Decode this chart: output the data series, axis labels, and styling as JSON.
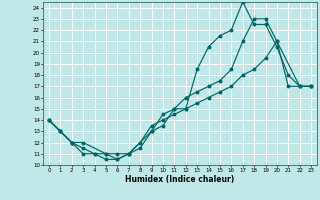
{
  "title": "",
  "xlabel": "Humidex (Indice chaleur)",
  "bg_color": "#c0e8e8",
  "grid_color": "#ffffff",
  "line_color": "#006666",
  "xlim": [
    -0.5,
    23.5
  ],
  "ylim": [
    10,
    24.5
  ],
  "xticks": [
    0,
    1,
    2,
    3,
    4,
    5,
    6,
    7,
    8,
    9,
    10,
    11,
    12,
    13,
    14,
    15,
    16,
    17,
    18,
    19,
    20,
    21,
    22,
    23
  ],
  "yticks": [
    10,
    11,
    12,
    13,
    14,
    15,
    16,
    17,
    18,
    19,
    20,
    21,
    22,
    23,
    24
  ],
  "line1_x": [
    0,
    1,
    2,
    3,
    4,
    5,
    6,
    7,
    8,
    9,
    10,
    11,
    12,
    13,
    14,
    15,
    16,
    17,
    18,
    19,
    20,
    21,
    22,
    23
  ],
  "line1_y": [
    14,
    13,
    12,
    11,
    11,
    10.5,
    10.5,
    11,
    11.5,
    13,
    13.5,
    15,
    15,
    18.5,
    20.5,
    21.5,
    22,
    24.5,
    22.5,
    22.5,
    20.5,
    18,
    17,
    17
  ],
  "line2_x": [
    0,
    1,
    2,
    3,
    4,
    5,
    6,
    7,
    8,
    9,
    10,
    11,
    12,
    13,
    14,
    15,
    16,
    17,
    18,
    19,
    20,
    21,
    22,
    23
  ],
  "line2_y": [
    14,
    13,
    12,
    11.5,
    11,
    11,
    10.5,
    11,
    12,
    13.5,
    14,
    14.5,
    15,
    15.5,
    16,
    16.5,
    17,
    18,
    18.5,
    19.5,
    21,
    17,
    17,
    17
  ],
  "line3_x": [
    0,
    1,
    2,
    3,
    5,
    6,
    7,
    9,
    10,
    11,
    12,
    13,
    14,
    15,
    16,
    17,
    18,
    19,
    20,
    22,
    23
  ],
  "line3_y": [
    14,
    13,
    12,
    12,
    11,
    11,
    11,
    13,
    14.5,
    15,
    16,
    16.5,
    17,
    17.5,
    18.5,
    21,
    23,
    23,
    21,
    17,
    17
  ]
}
